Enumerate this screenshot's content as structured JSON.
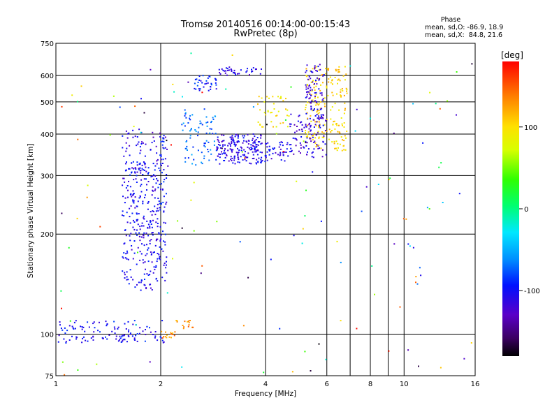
{
  "chart_data": {
    "type": "scatter",
    "title": "Tromsø 20140516 00:14:00-00:15:43",
    "subtitle": "RwPretec (8p)",
    "xlabel": "Frequency [MHz]",
    "ylabel": "Stationary phase Virtual Height [km]",
    "xscale": "log",
    "yscale": "log",
    "xlim": [
      1,
      16
    ],
    "ylim": [
      75,
      750
    ],
    "xticks": [
      1,
      2,
      4,
      6,
      8,
      10,
      16
    ],
    "yticks": [
      75,
      100,
      200,
      300,
      400,
      500,
      600,
      750
    ],
    "grid_x": [
      2,
      4,
      6,
      7,
      8,
      9,
      10
    ],
    "grid_y": [
      100,
      200,
      300,
      400,
      500,
      600
    ],
    "phase_stats": {
      "title": "Phase",
      "line_o": "mean, sd,O: -86.9, 18.9",
      "line_x": "mean, sd,X:  84.8, 21.6"
    },
    "colorbar": {
      "label": "[deg]",
      "range": [
        -180,
        180
      ],
      "ticks": [
        100,
        0,
        -100
      ],
      "colormap": "rainbow"
    },
    "clusters": [
      {
        "x": [
          1.0,
          2.05
        ],
        "y": [
          94,
          110
        ],
        "phase": -100,
        "n": 120
      },
      {
        "x": [
          1.55,
          1.95
        ],
        "y": [
          135,
          330
        ],
        "phase": -105,
        "n": 260
      },
      {
        "x": [
          1.95,
          2.08
        ],
        "y": [
          140,
          400
        ],
        "phase": -100,
        "n": 90
      },
      {
        "x": [
          1.55,
          2.1
        ],
        "y": [
          310,
          420
        ],
        "phase": -110,
        "n": 60
      },
      {
        "x": [
          2.3,
          2.9
        ],
        "y": [
          320,
          480
        ],
        "phase": -70,
        "n": 80
      },
      {
        "x": [
          2.9,
          3.9
        ],
        "y": [
          325,
          400
        ],
        "phase": -110,
        "n": 180
      },
      {
        "x": [
          3.7,
          4.7
        ],
        "y": [
          330,
          380
        ],
        "phase": -105,
        "n": 60
      },
      {
        "x": [
          4.7,
          6.0
        ],
        "y": [
          340,
          460
        ],
        "phase": -115,
        "n": 90
      },
      {
        "x": [
          5.2,
          6.9
        ],
        "y": [
          355,
          640
        ],
        "phase": 105,
        "n": 200
      },
      {
        "x": [
          5.2,
          5.9
        ],
        "y": [
          420,
          650
        ],
        "phase": -115,
        "n": 90
      },
      {
        "x": [
          3.8,
          4.7
        ],
        "y": [
          420,
          520
        ],
        "phase": 95,
        "n": 40
      },
      {
        "x": [
          2.5,
          2.9
        ],
        "y": [
          540,
          600
        ],
        "phase": -95,
        "n": 35
      },
      {
        "x": [
          2.9,
          3.9
        ],
        "y": [
          600,
          640
        ],
        "phase": -110,
        "n": 40
      },
      {
        "x": [
          2.0,
          2.2
        ],
        "y": [
          97,
          102
        ],
        "phase": 130,
        "n": 15
      },
      {
        "x": [
          2.2,
          2.5
        ],
        "y": [
          104,
          110
        ],
        "phase": 130,
        "n": 15
      }
    ],
    "scattered_points": 130
  }
}
